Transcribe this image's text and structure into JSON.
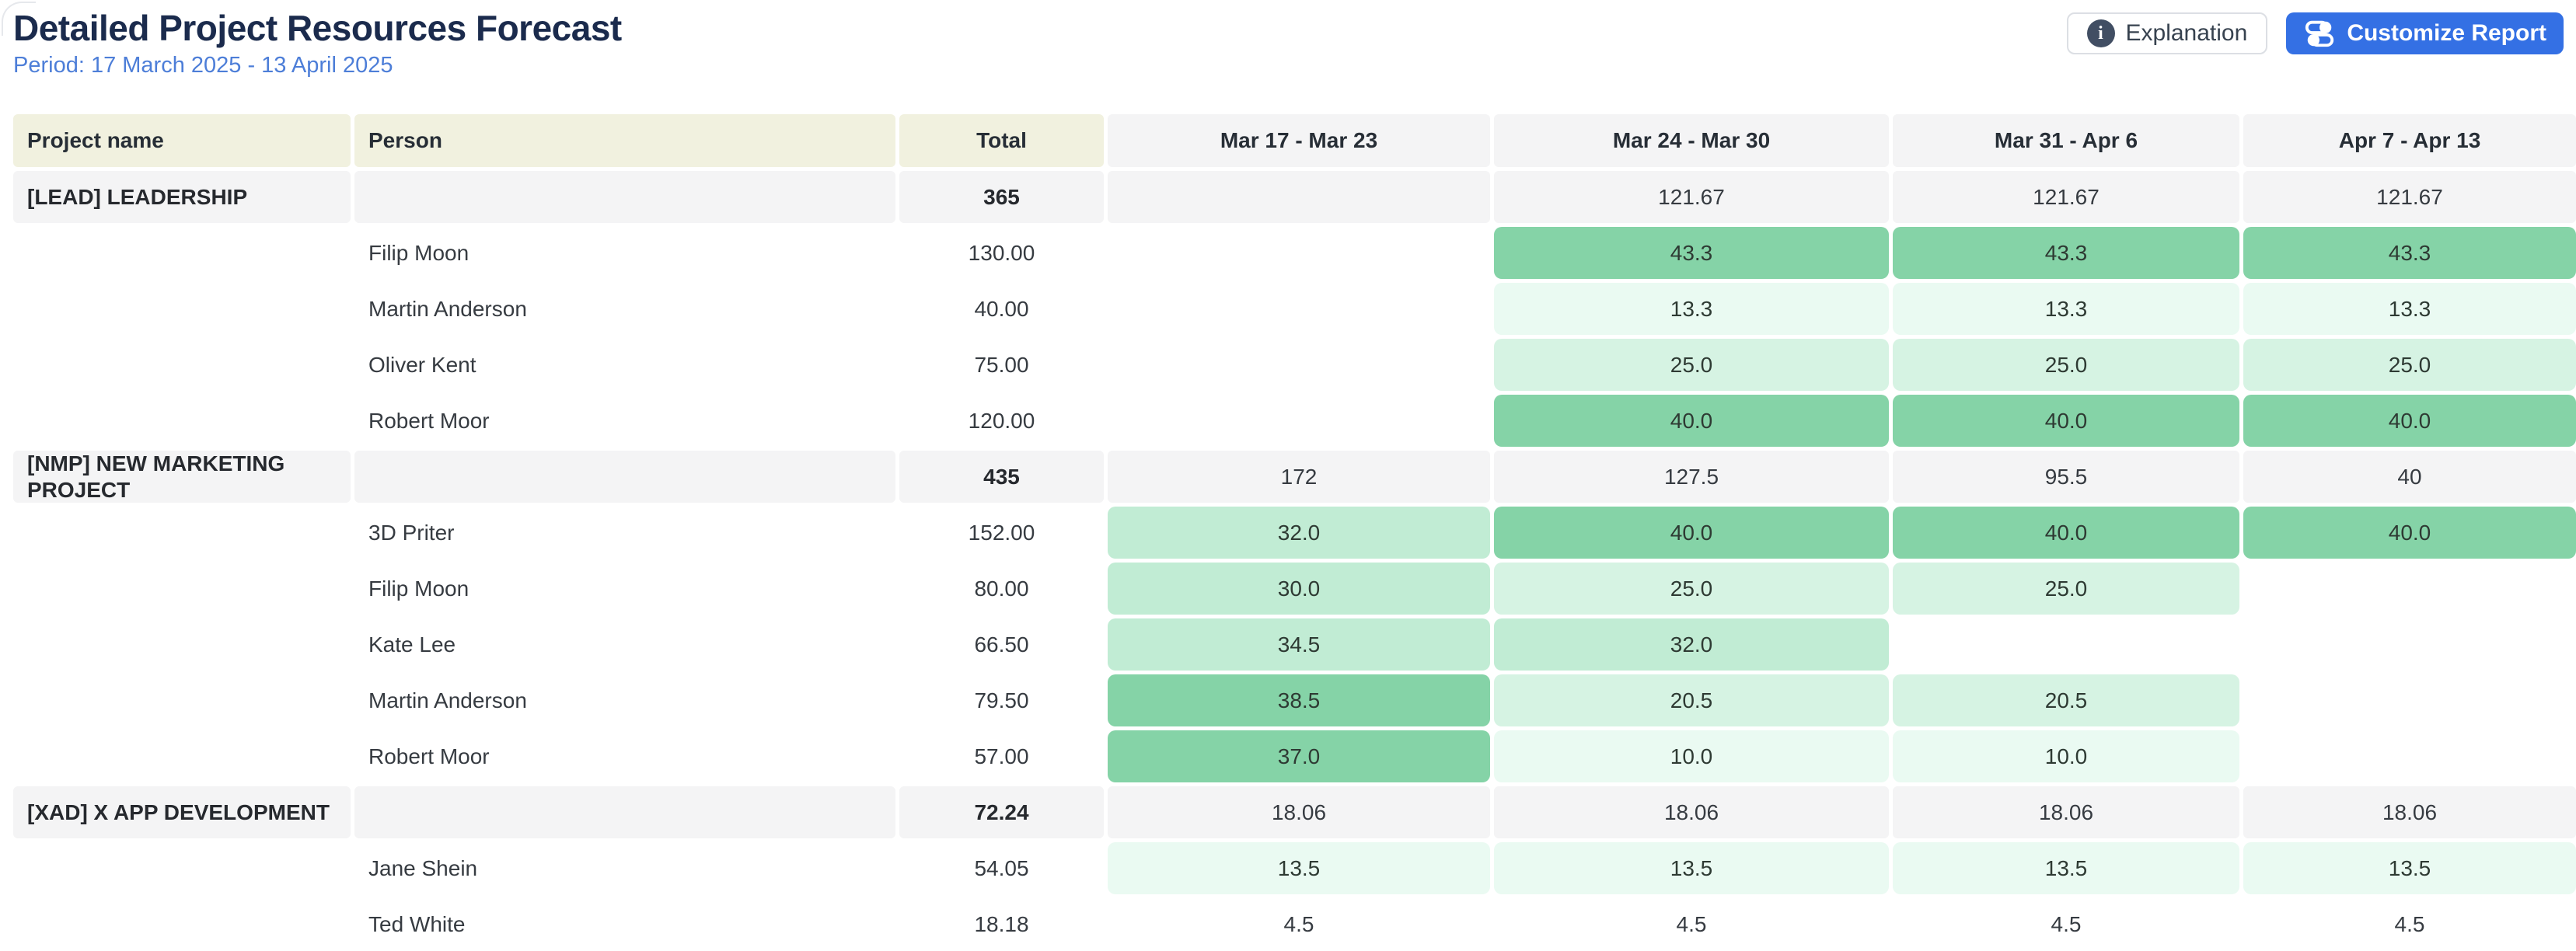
{
  "header": {
    "title": "Detailed Project Resources Forecast",
    "period": "Period: 17 March 2025 - 13 April 2025",
    "buttons": {
      "explanation": "Explanation",
      "customize": "Customize Report"
    },
    "icons": {
      "explanation": "info-icon",
      "customize": "sliders-icon"
    }
  },
  "colors": {
    "accent_blue": "#3470e4",
    "title_navy": "#1b2b4d",
    "period_blue": "#4d7ed8",
    "header_beige": "#f1f1df",
    "neutral_cell": "#f4f4f5",
    "green_levels": {
      "1": "#eafaf2",
      "2": "#d6f3e3",
      "3": "#c1ecd4",
      "4": "#85d3a7"
    }
  },
  "table": {
    "columns": [
      "Project name",
      "Person",
      "Total",
      "Mar 17 - Mar 23",
      "Mar 24 - Mar 30",
      "Mar 31 - Apr 6",
      "Apr 7 - Apr 13"
    ],
    "rows": [
      {
        "type": "group",
        "project": "[LEAD] LEADERSHIP",
        "person": "",
        "total": "365",
        "weeks": [
          {
            "v": ""
          },
          {
            "v": "121.67"
          },
          {
            "v": "121.67"
          },
          {
            "v": "121.67"
          }
        ]
      },
      {
        "type": "person",
        "project": "",
        "person": "Filip Moon",
        "total": "130.00",
        "weeks": [
          {
            "v": ""
          },
          {
            "v": "43.3",
            "lv": 4
          },
          {
            "v": "43.3",
            "lv": 4
          },
          {
            "v": "43.3",
            "lv": 4
          }
        ]
      },
      {
        "type": "person",
        "project": "",
        "person": "Martin Anderson",
        "total": "40.00",
        "weeks": [
          {
            "v": ""
          },
          {
            "v": "13.3",
            "lv": 1
          },
          {
            "v": "13.3",
            "lv": 1
          },
          {
            "v": "13.3",
            "lv": 1
          }
        ]
      },
      {
        "type": "person",
        "project": "",
        "person": "Oliver Kent",
        "total": "75.00",
        "weeks": [
          {
            "v": ""
          },
          {
            "v": "25.0",
            "lv": 2
          },
          {
            "v": "25.0",
            "lv": 2
          },
          {
            "v": "25.0",
            "lv": 2
          }
        ]
      },
      {
        "type": "person",
        "project": "",
        "person": "Robert Moor",
        "total": "120.00",
        "weeks": [
          {
            "v": ""
          },
          {
            "v": "40.0",
            "lv": 4
          },
          {
            "v": "40.0",
            "lv": 4
          },
          {
            "v": "40.0",
            "lv": 4
          }
        ]
      },
      {
        "type": "group",
        "project": "[NMP] NEW MARKETING PROJECT",
        "person": "",
        "total": "435",
        "weeks": [
          {
            "v": "172"
          },
          {
            "v": "127.5"
          },
          {
            "v": "95.5"
          },
          {
            "v": "40"
          }
        ]
      },
      {
        "type": "person",
        "project": "",
        "person": "3D Priter",
        "total": "152.00",
        "weeks": [
          {
            "v": "32.0",
            "lv": 3
          },
          {
            "v": "40.0",
            "lv": 4
          },
          {
            "v": "40.0",
            "lv": 4
          },
          {
            "v": "40.0",
            "lv": 4
          }
        ]
      },
      {
        "type": "person",
        "project": "",
        "person": "Filip Moon",
        "total": "80.00",
        "weeks": [
          {
            "v": "30.0",
            "lv": 3
          },
          {
            "v": "25.0",
            "lv": 2
          },
          {
            "v": "25.0",
            "lv": 2
          },
          {
            "v": ""
          }
        ]
      },
      {
        "type": "person",
        "project": "",
        "person": "Kate Lee",
        "total": "66.50",
        "weeks": [
          {
            "v": "34.5",
            "lv": 3
          },
          {
            "v": "32.0",
            "lv": 3
          },
          {
            "v": ""
          },
          {
            "v": ""
          }
        ]
      },
      {
        "type": "person",
        "project": "",
        "person": "Martin Anderson",
        "total": "79.50",
        "weeks": [
          {
            "v": "38.5",
            "lv": 4
          },
          {
            "v": "20.5",
            "lv": 2
          },
          {
            "v": "20.5",
            "lv": 2
          },
          {
            "v": ""
          }
        ]
      },
      {
        "type": "person",
        "project": "",
        "person": "Robert Moor",
        "total": "57.00",
        "weeks": [
          {
            "v": "37.0",
            "lv": 4
          },
          {
            "v": "10.0",
            "lv": 1
          },
          {
            "v": "10.0",
            "lv": 1
          },
          {
            "v": ""
          }
        ]
      },
      {
        "type": "group",
        "project": "[XAD] X APP DEVELOPMENT",
        "person": "",
        "total": "72.24",
        "weeks": [
          {
            "v": "18.06"
          },
          {
            "v": "18.06"
          },
          {
            "v": "18.06"
          },
          {
            "v": "18.06"
          }
        ]
      },
      {
        "type": "person",
        "project": "",
        "person": "Jane Shein",
        "total": "54.05",
        "weeks": [
          {
            "v": "13.5",
            "lv": 1
          },
          {
            "v": "13.5",
            "lv": 1
          },
          {
            "v": "13.5",
            "lv": 1
          },
          {
            "v": "13.5",
            "lv": 1
          }
        ]
      },
      {
        "type": "person",
        "project": "",
        "person": "Ted White",
        "total": "18.18",
        "weeks": [
          {
            "v": "4.5",
            "lv": 0
          },
          {
            "v": "4.5",
            "lv": 0
          },
          {
            "v": "4.5",
            "lv": 0
          },
          {
            "v": "4.5",
            "lv": 0
          }
        ]
      }
    ]
  }
}
